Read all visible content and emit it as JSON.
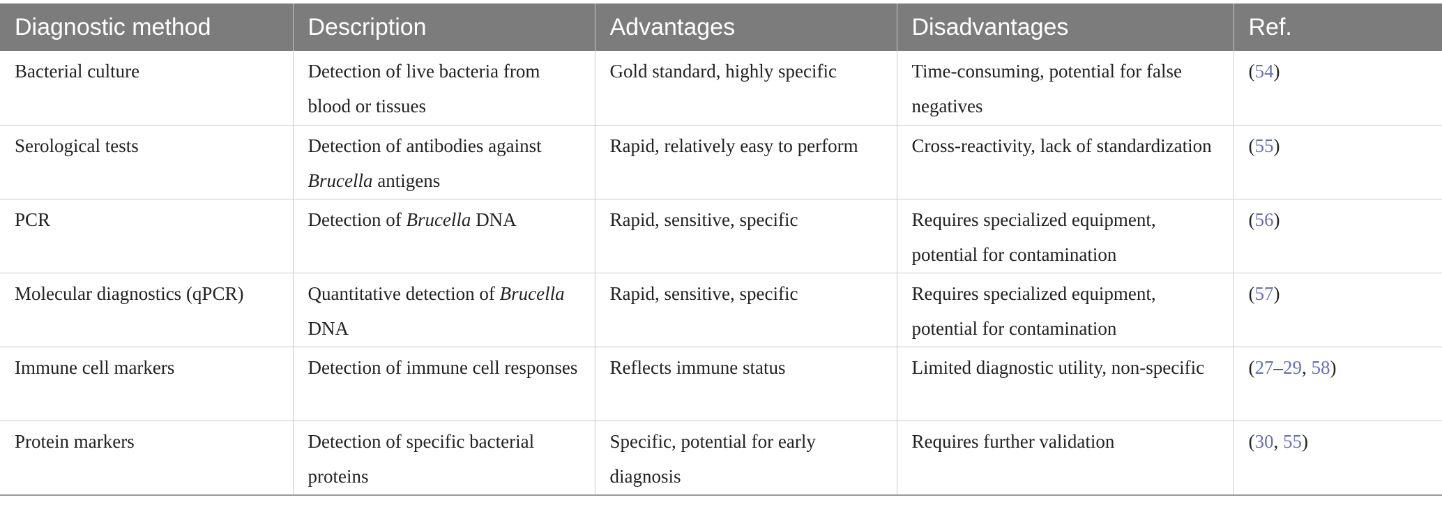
{
  "table": {
    "headers": [
      "Diagnostic method",
      "Description",
      "Advantages",
      "Disadvantages",
      "Ref."
    ],
    "rows": [
      {
        "method": "Bacterial culture",
        "description": "Detection of live bacteria from blood or tissues",
        "advantages": "Gold standard, highly specific",
        "disadvantages": "Time-consuming, potential for false negatives",
        "ref": {
          "open": "(",
          "a": "54",
          "sep": "",
          "b": "",
          "sep2": "",
          "c": "",
          "close": ")"
        }
      },
      {
        "method": "Serological tests",
        "description_pre": "Detection of antibodies against ",
        "description_em": "Brucella",
        "description_post": " antigens",
        "advantages": "Rapid, relatively easy to perform",
        "disadvantages": "Cross-reactivity, lack of standardization",
        "ref": {
          "open": "(",
          "a": "55",
          "sep": "",
          "b": "",
          "sep2": "",
          "c": "",
          "close": ")"
        }
      },
      {
        "method": "PCR",
        "description_pre": "Detection of ",
        "description_em": "Brucella",
        "description_post": " DNA",
        "advantages": "Rapid, sensitive, specific",
        "disadvantages": "Requires specialized equipment, potential for contamination",
        "ref": {
          "open": "(",
          "a": "56",
          "sep": "",
          "b": "",
          "sep2": "",
          "c": "",
          "close": ")"
        }
      },
      {
        "method": "Molecular diagnostics (qPCR)",
        "description_pre": "Quantitative detection of ",
        "description_em": "Brucella",
        "description_post": " DNA",
        "advantages": "Rapid, sensitive, specific",
        "disadvantages": "Requires specialized equipment, potential for contamination",
        "ref": {
          "open": "(",
          "a": "57",
          "sep": "",
          "b": "",
          "sep2": "",
          "c": "",
          "close": ")"
        }
      },
      {
        "method": "Immune cell markers",
        "description": "Detection of immune cell responses",
        "advantages": "Reflects immune status",
        "disadvantages": "Limited diagnostic utility, non-specific",
        "ref": {
          "open": "(",
          "a": "27",
          "sep": "–",
          "b": "29",
          "sep2": ", ",
          "c": "58",
          "close": ")"
        }
      },
      {
        "method": "Protein markers",
        "description": "Detection of specific bacterial proteins",
        "advantages": "Specific, potential for early diagnosis",
        "disadvantages": "Requires further validation",
        "ref": {
          "open": "(",
          "a": "30",
          "sep": ", ",
          "b": "55",
          "sep2": "",
          "c": "",
          "close": ")"
        }
      }
    ]
  },
  "colors": {
    "header_bg": "#7b7c7b",
    "header_text": "#ffffff",
    "link": "#6a6fb5",
    "grid": "#c9c9c9"
  }
}
